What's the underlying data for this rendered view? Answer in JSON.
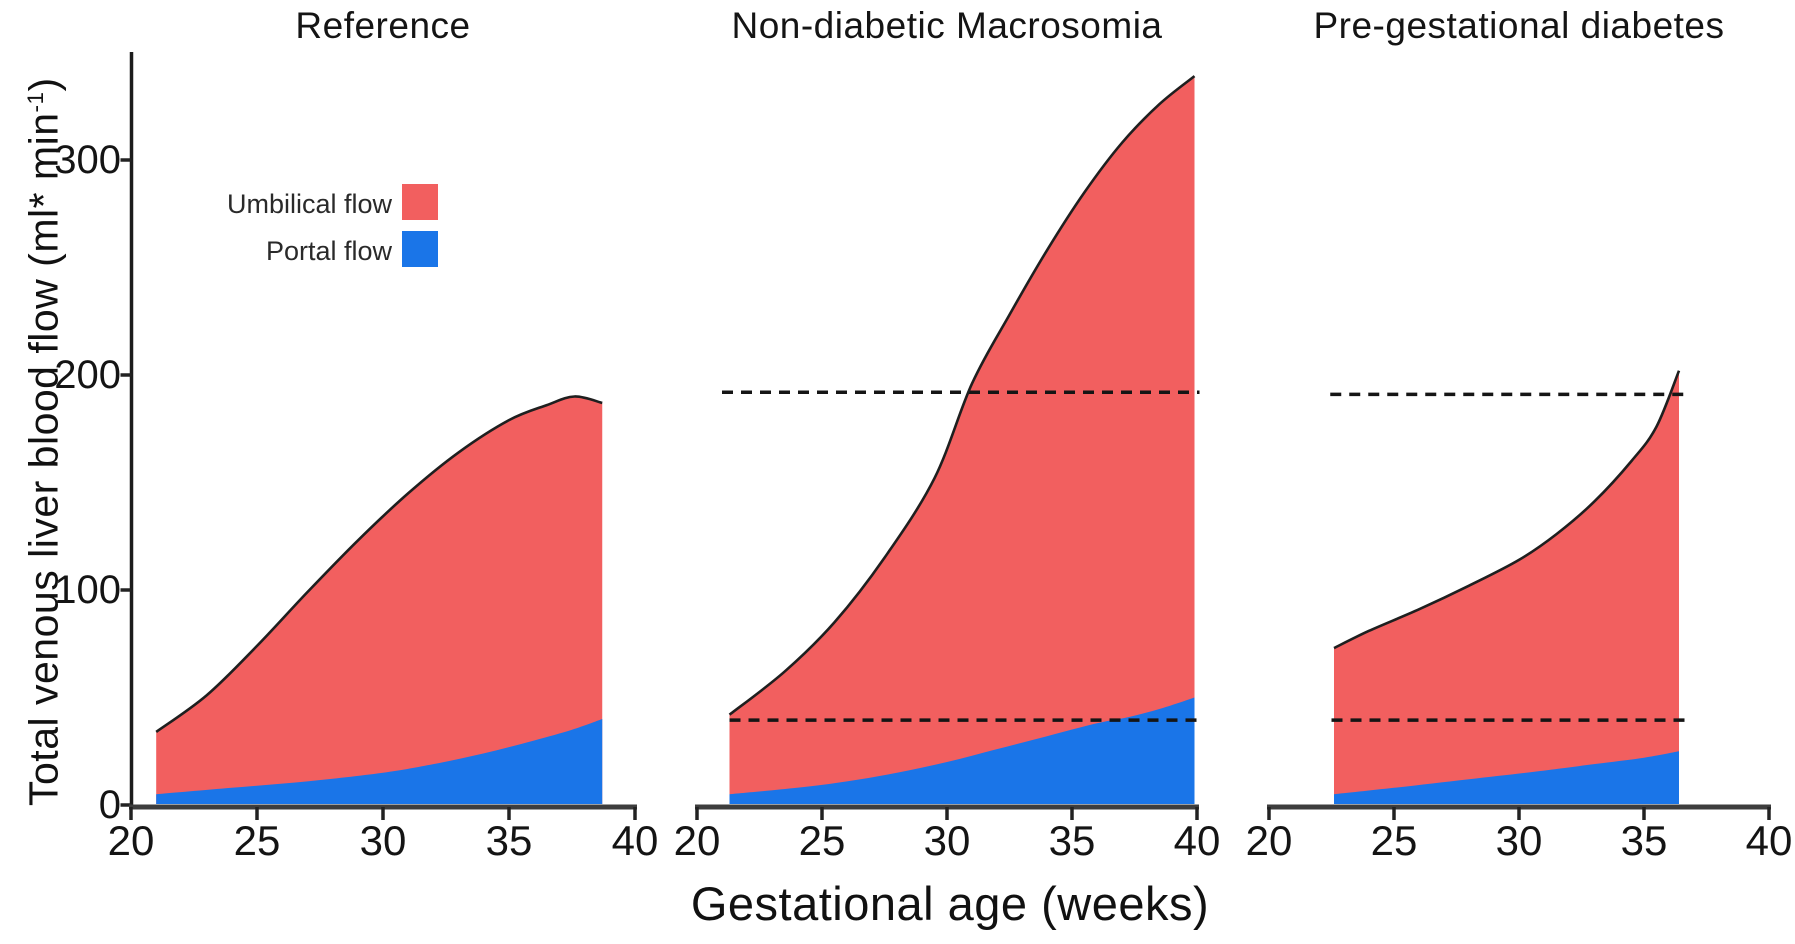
{
  "figure": {
    "y_axis": {
      "label_prefix": "Total venous liver blood flow (ml* min",
      "label_sup": "-1",
      "label_suffix": ")",
      "ticks": [
        0,
        100,
        200,
        300
      ]
    },
    "x_axis": {
      "label": "Gestational age (weeks)"
    },
    "legend": {
      "items": [
        {
          "name": "umbilical",
          "label": "Umbilical flow",
          "color": "#f25f5f"
        },
        {
          "name": "portal",
          "label": "Portal flow",
          "color": "#1a75e8"
        }
      ]
    },
    "colors": {
      "umbilical_fill": "#f25f5f",
      "portal_fill": "#1a75e8",
      "curve_stroke": "#1f1f1f",
      "dashed_line": "#151515",
      "x_axis_line": "#3d3d3d",
      "y_axis_line": "#1c1c1c",
      "tick_mark": "#222222"
    }
  },
  "chart_data": [
    {
      "type": "area",
      "title": "Reference",
      "xlabel_ticks": [
        20,
        25,
        30,
        35,
        40
      ],
      "xlim": [
        20,
        40
      ],
      "ylim": [
        0,
        350
      ],
      "x_unit": "weeks",
      "y_unit": "ml*min-1",
      "series": [
        {
          "name": "Total venous liver blood flow (umbilical + portal)",
          "role": "total",
          "points": [
            [
              21,
              34
            ],
            [
              23,
              51
            ],
            [
              25,
              74
            ],
            [
              27,
              99
            ],
            [
              29,
              123
            ],
            [
              31,
              145
            ],
            [
              33,
              164
            ],
            [
              35,
              179
            ],
            [
              36.5,
              186
            ],
            [
              37.6,
              190
            ],
            [
              38.7,
              187
            ]
          ]
        },
        {
          "name": "Portal flow",
          "role": "portal",
          "points": [
            [
              21,
              5
            ],
            [
              24,
              8
            ],
            [
              27,
              11
            ],
            [
              30,
              15
            ],
            [
              32,
              19
            ],
            [
              34,
              24
            ],
            [
              36,
              30
            ],
            [
              37.5,
              35
            ],
            [
              38.7,
              40
            ]
          ]
        }
      ],
      "reference_lines": []
    },
    {
      "type": "area",
      "title": "Non-diabetic Macrosomia",
      "xlabel_ticks": [
        20,
        25,
        30,
        35,
        40
      ],
      "xlim": [
        20,
        40
      ],
      "ylim": [
        0,
        350
      ],
      "x_unit": "weeks",
      "y_unit": "ml*min-1",
      "series": [
        {
          "name": "Total venous liver blood flow (umbilical + portal)",
          "role": "total",
          "points": [
            [
              21.3,
              42
            ],
            [
              23.5,
              62
            ],
            [
              25.5,
              85
            ],
            [
              27.5,
              115
            ],
            [
              29.5,
              152
            ],
            [
              31,
              196
            ],
            [
              32.5,
              228
            ],
            [
              34,
              258
            ],
            [
              35.5,
              285
            ],
            [
              37,
              308
            ],
            [
              38.5,
              326
            ],
            [
              39.9,
              339
            ]
          ]
        },
        {
          "name": "Portal flow",
          "role": "portal",
          "points": [
            [
              21.3,
              5
            ],
            [
              24,
              8
            ],
            [
              26,
              11
            ],
            [
              28,
              15
            ],
            [
              30,
              20
            ],
            [
              32,
              26
            ],
            [
              34,
              32
            ],
            [
              36,
              38
            ],
            [
              37.3,
              41
            ],
            [
              38.6,
              45
            ],
            [
              39.9,
              50
            ]
          ]
        }
      ],
      "reference_lines": [
        {
          "value": 192,
          "week_start": 21.0,
          "week_end": 40.1,
          "meaning": "reference max total flow"
        },
        {
          "value": 39.5,
          "week_start": 21.3,
          "week_end": 40.1,
          "meaning": "reference max portal flow"
        }
      ]
    },
    {
      "type": "area",
      "title": "Pre-gestational diabetes",
      "xlabel_ticks": [
        20,
        25,
        30,
        35,
        40
      ],
      "xlim": [
        20,
        40
      ],
      "ylim": [
        0,
        350
      ],
      "x_unit": "weeks",
      "y_unit": "ml*min-1",
      "series": [
        {
          "name": "Total venous liver blood flow (umbilical + portal)",
          "role": "total",
          "points": [
            [
              22.6,
              73
            ],
            [
              24,
              81
            ],
            [
              26,
              91
            ],
            [
              28,
              102
            ],
            [
              30,
              114
            ],
            [
              31.5,
              126
            ],
            [
              33,
              141
            ],
            [
              34.5,
              160
            ],
            [
              35.5,
              176
            ],
            [
              36.4,
              202
            ]
          ]
        },
        {
          "name": "Portal flow",
          "role": "portal",
          "points": [
            [
              22.6,
              5
            ],
            [
              25,
              8
            ],
            [
              28,
              12
            ],
            [
              31,
              16
            ],
            [
              33,
              19
            ],
            [
              35,
              22
            ],
            [
              36.4,
              25
            ]
          ]
        }
      ],
      "reference_lines": [
        {
          "value": 191,
          "week_start": 22.45,
          "week_end": 36.85,
          "meaning": "reference max total flow"
        },
        {
          "value": 39.5,
          "week_start": 22.5,
          "week_end": 36.9,
          "meaning": "reference max portal flow"
        }
      ]
    }
  ]
}
